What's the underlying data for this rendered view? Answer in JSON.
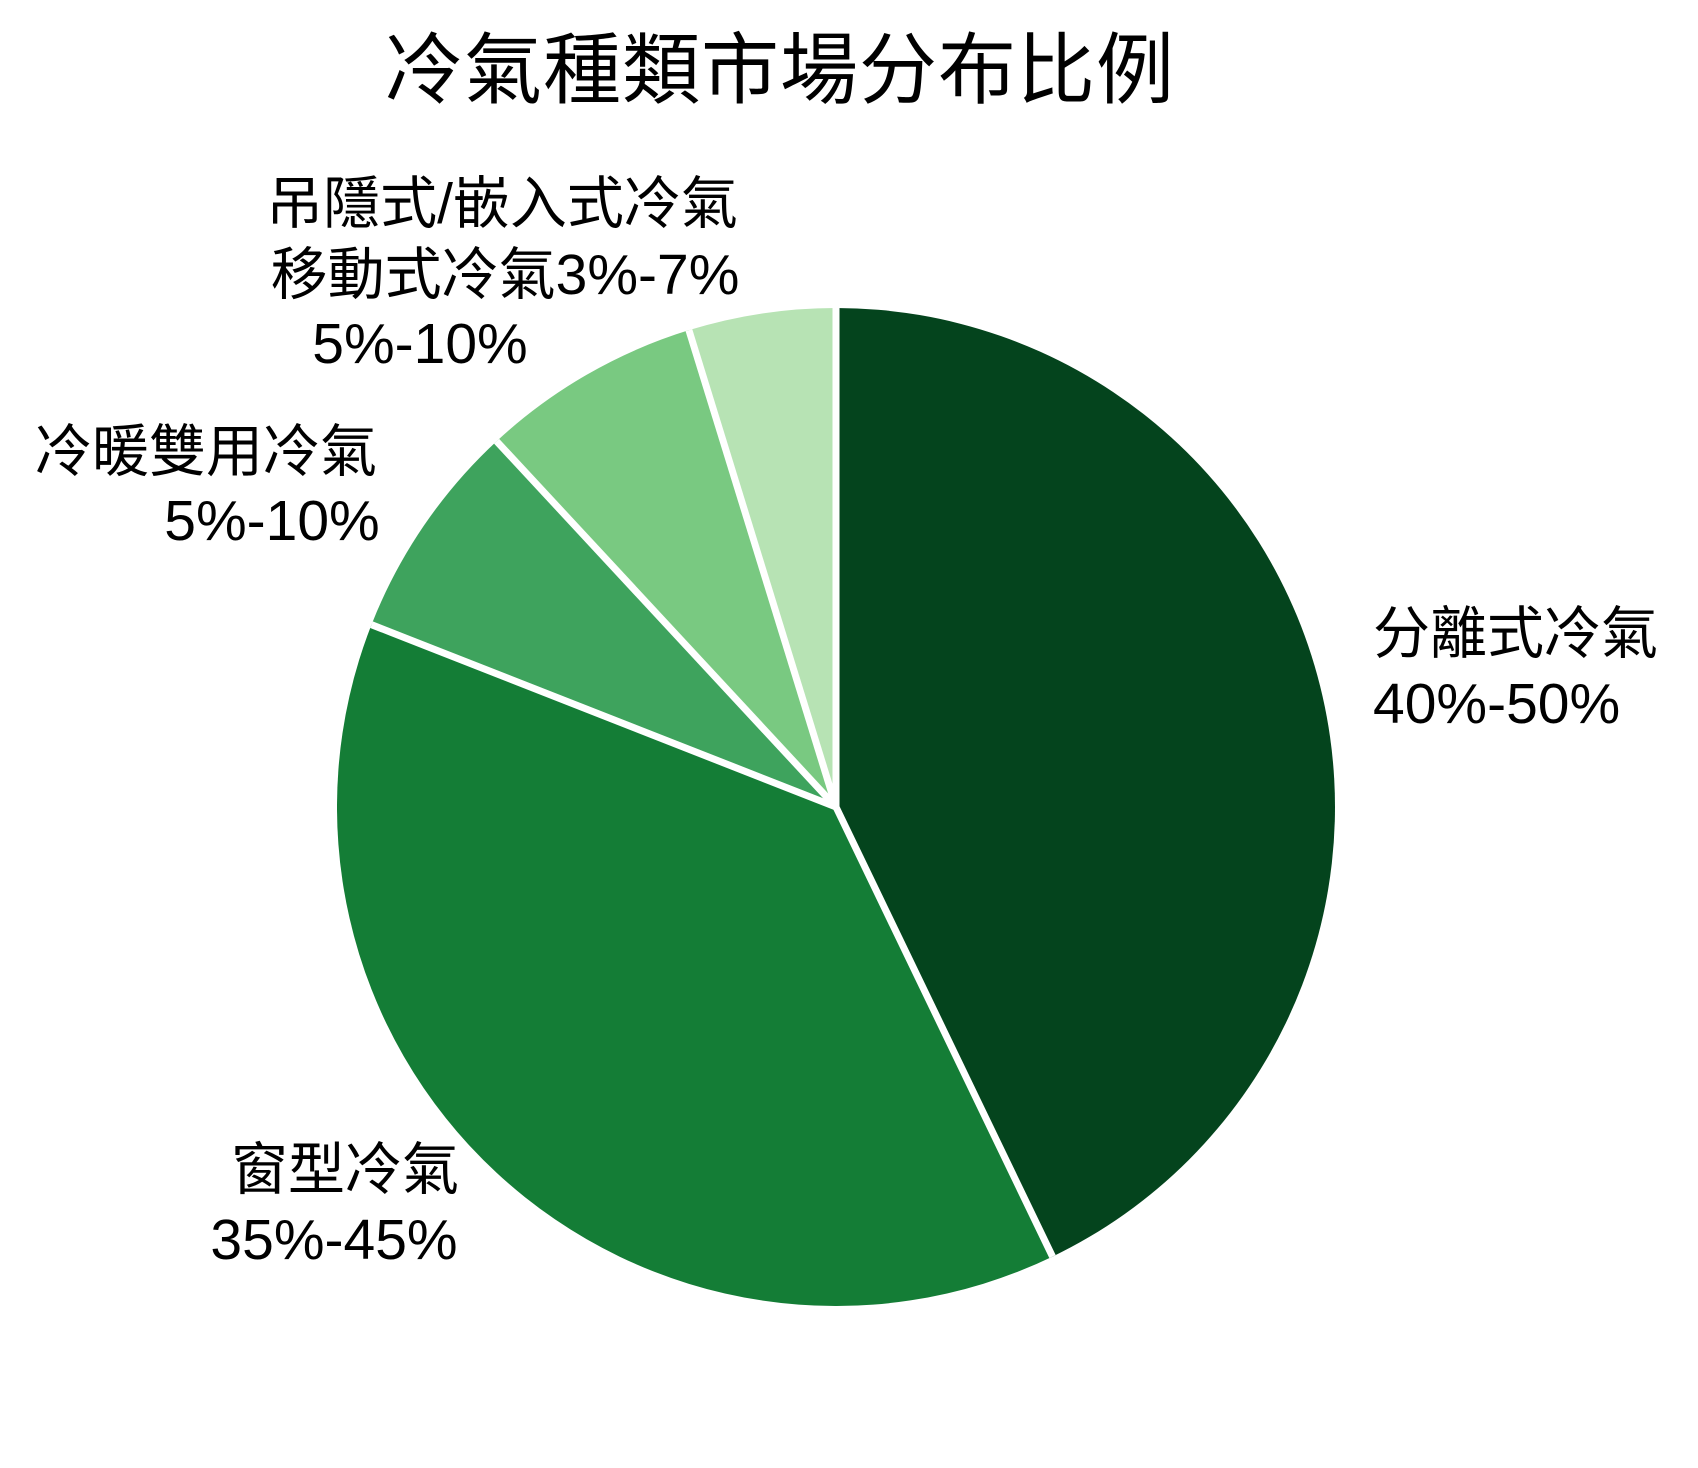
{
  "title": "冷氣種類市場分布比例",
  "chart_data": {
    "type": "pie",
    "title": "冷氣種類市場分布比例",
    "legend_position": "none",
    "start_angle_deg": 0,
    "direction": "clockwise",
    "separator_color": "#ffffff",
    "separator_width": 7,
    "slices": [
      {
        "id": "split",
        "label": "分離式冷氣",
        "range": "40%-50%",
        "value": 45,
        "color": "#04441d"
      },
      {
        "id": "window",
        "label": "窗型冷氣",
        "range": "35%-45%",
        "value": 40,
        "color": "#147d36"
      },
      {
        "id": "dual",
        "label": "冷暖雙用冷氣",
        "range": "5%-10%",
        "value": 7.5,
        "color": "#3ea35d"
      },
      {
        "id": "portable",
        "label": "移動式冷氣",
        "range": "5%-10%",
        "value": 7.5,
        "color": "#79c981"
      },
      {
        "id": "concealed",
        "label": "吊隱式/嵌入式冷氣",
        "range": "3%-7%",
        "value": 5,
        "color": "#b7e3b4"
      }
    ]
  },
  "callouts": {
    "overlap_line1": "吊隱式/嵌入式冷氣",
    "overlap_line2": "移動式冷氣3%-7%",
    "overlap_line3": "5%-10%",
    "dual_line1": "冷暖雙用冷氣",
    "dual_line2": "5%-10%",
    "split_line1": "分離式冷氣",
    "split_line2": "40%-50%",
    "window_line1": "窗型冷氣",
    "window_line2": "35%-45%"
  }
}
